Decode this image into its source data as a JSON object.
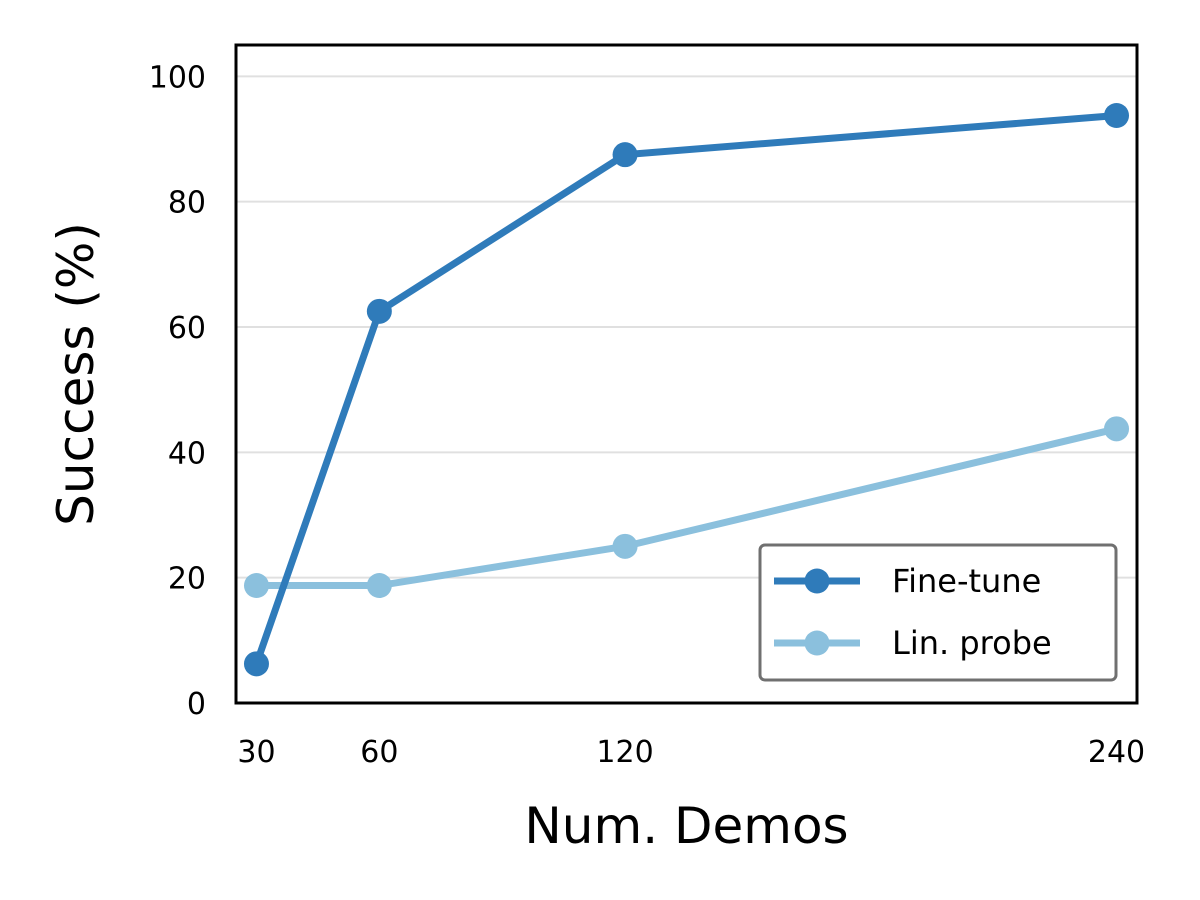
{
  "chart_data": {
    "type": "line",
    "title": "",
    "xlabel": "Num. Demos",
    "ylabel": "Success (%)",
    "x": [
      30,
      60,
      120,
      240
    ],
    "x_tick_labels": [
      "30",
      "60",
      "120",
      "240"
    ],
    "y_ticks": [
      0,
      20,
      40,
      60,
      80,
      100
    ],
    "y_tick_labels": [
      "0",
      "20",
      "40",
      "60",
      "80",
      "100"
    ],
    "xlim": [
      25,
      245
    ],
    "ylim": [
      0,
      105
    ],
    "grid": "horizontal",
    "legend_position": "lower-right",
    "series": [
      {
        "name": "Fine-tune",
        "color": "#2f7bba",
        "values": [
          6.25,
          62.5,
          87.5,
          93.75
        ]
      },
      {
        "name": "Lin. probe",
        "color": "#8bc0dd",
        "values": [
          18.75,
          18.75,
          25.0,
          43.75
        ]
      }
    ]
  }
}
